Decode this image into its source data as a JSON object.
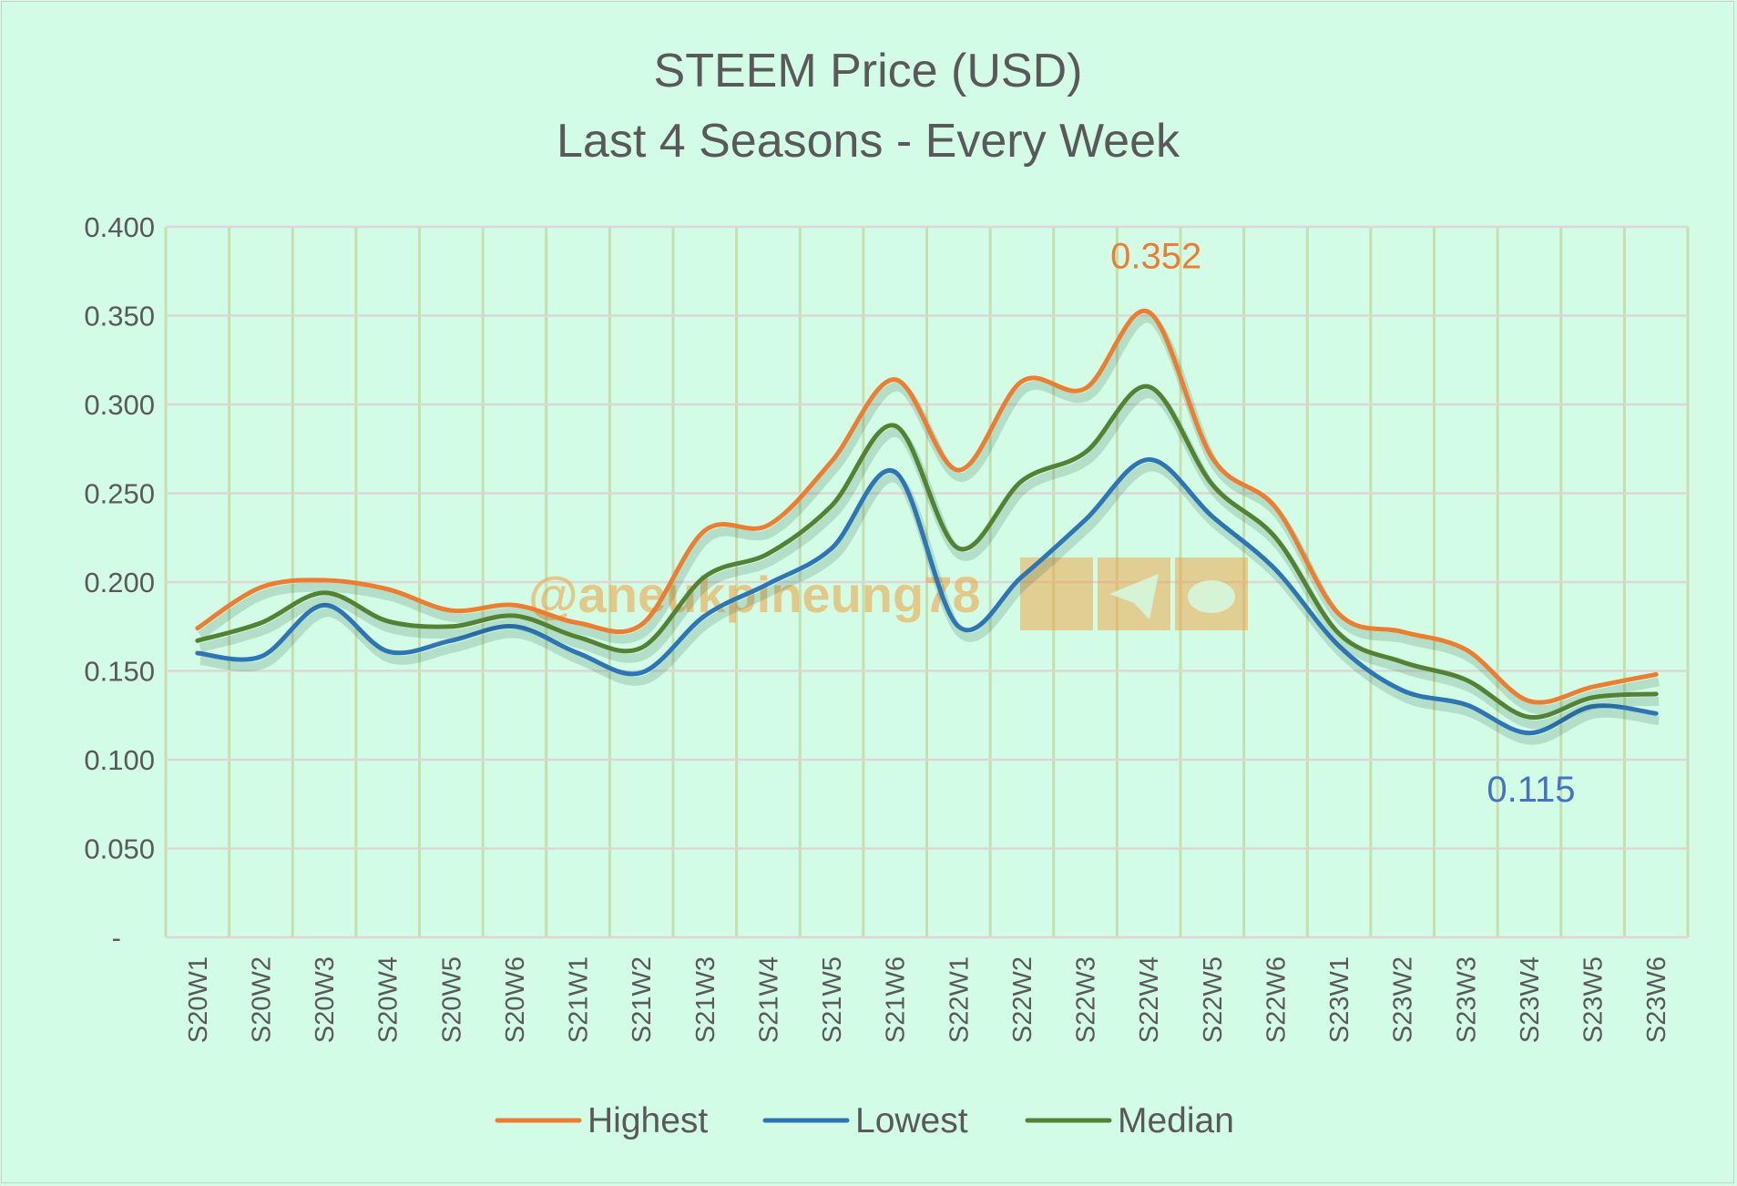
{
  "chart_data": {
    "type": "line",
    "title": "STEEM Price (USD)",
    "subtitle": "Last 4 Seasons - Every Week",
    "xlabel": "",
    "ylabel": "",
    "ylim": [
      0,
      0.4
    ],
    "yticks": [
      "-",
      "0.050",
      "0.100",
      "0.150",
      "0.200",
      "0.250",
      "0.300",
      "0.350",
      "0.400"
    ],
    "grid": true,
    "legend_position": "bottom",
    "categories": [
      "S20W1",
      "S20W2",
      "S20W3",
      "S20W4",
      "S20W5",
      "S20W6",
      "S21W1",
      "S21W2",
      "S21W3",
      "S21W4",
      "S21W5",
      "S21W6",
      "S22W1",
      "S22W2",
      "S22W3",
      "S22W4",
      "S22W5",
      "S22W6",
      "S23W1",
      "S23W2",
      "S23W3",
      "S23W4",
      "S23W5",
      "S23W6"
    ],
    "series": [
      {
        "name": "Highest",
        "color": "#ed7d31",
        "values": [
          0.174,
          0.197,
          0.201,
          0.196,
          0.184,
          0.187,
          0.177,
          0.176,
          0.229,
          0.232,
          0.268,
          0.314,
          0.263,
          0.313,
          0.309,
          0.352,
          0.27,
          0.242,
          0.182,
          0.172,
          0.162,
          0.133,
          0.141,
          0.148
        ]
      },
      {
        "name": "Lowest",
        "color": "#2e75b6",
        "values": [
          0.16,
          0.158,
          0.187,
          0.161,
          0.167,
          0.175,
          0.16,
          0.149,
          0.181,
          0.199,
          0.219,
          0.262,
          0.175,
          0.203,
          0.235,
          0.269,
          0.237,
          0.207,
          0.164,
          0.139,
          0.131,
          0.115,
          0.13,
          0.126
        ]
      },
      {
        "name": "Median",
        "color": "#548235",
        "values": [
          0.167,
          0.177,
          0.194,
          0.178,
          0.175,
          0.181,
          0.169,
          0.163,
          0.203,
          0.216,
          0.243,
          0.288,
          0.219,
          0.257,
          0.273,
          0.31,
          0.255,
          0.225,
          0.171,
          0.155,
          0.145,
          0.124,
          0.135,
          0.137
        ]
      }
    ],
    "annotations": [
      {
        "text": "0.352",
        "series": "Highest",
        "category": "S22W4",
        "color": "#ed7d31"
      },
      {
        "text": "0.115",
        "series": "Lowest",
        "category": "S23W4",
        "color": "#4472c4"
      }
    ],
    "watermark": "@aneukpineung78"
  }
}
